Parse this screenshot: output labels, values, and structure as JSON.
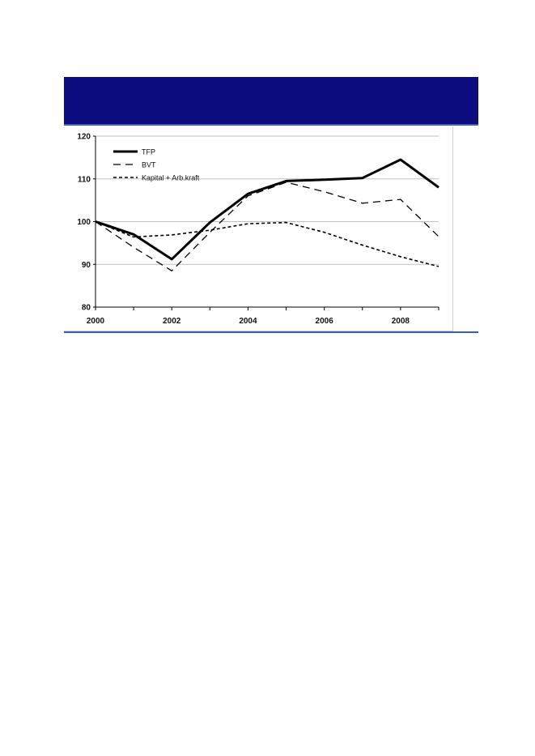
{
  "colors": {
    "banner": "#0c0c7e",
    "rule": "#3a5bbf",
    "grid": "#c0c0c0",
    "series": "#000000"
  },
  "chart_data": {
    "type": "line",
    "x": [
      2000,
      2001,
      2002,
      2003,
      2004,
      2005,
      2006,
      2007,
      2008,
      2009
    ],
    "xticks": [
      "2000",
      "2002",
      "2004",
      "2006",
      "2008"
    ],
    "yticks": [
      "80",
      "90",
      "100",
      "110",
      "120"
    ],
    "ylim": [
      80,
      120
    ],
    "xlim": [
      2000,
      2009
    ],
    "grid": "horizontal",
    "legend_position": "top-left",
    "series": [
      {
        "name": "TFP",
        "style": "solid-thick",
        "values": [
          100,
          97,
          91.2,
          99.8,
          106.5,
          109.5,
          109.8,
          110.2,
          114.5,
          108
        ]
      },
      {
        "name": "BVT",
        "style": "long-dash",
        "values": [
          100,
          94,
          88.5,
          97.5,
          106,
          109.2,
          107,
          104.3,
          105.2,
          96.5
        ]
      },
      {
        "name": "Kapital + Arb.kraft",
        "style": "short-dash",
        "values": [
          100,
          96.4,
          96.9,
          98,
          99.5,
          99.8,
          97.5,
          94.5,
          91.8,
          89.5
        ]
      }
    ]
  }
}
